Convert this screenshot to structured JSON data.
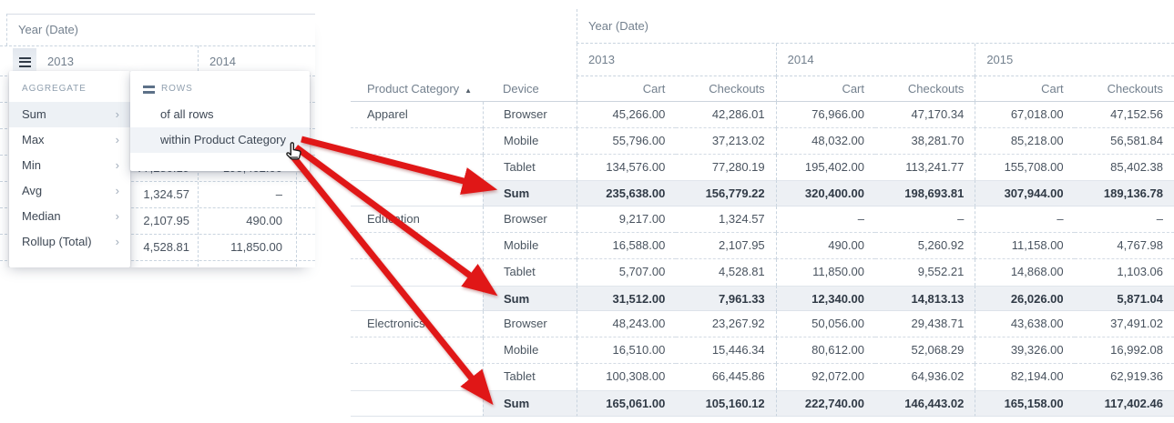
{
  "colors": {
    "accent_red": "#e01717",
    "sum_row_bg": "#edf0f4",
    "menu_highlight_bg": "#edf1f5",
    "header_text": "#73808e",
    "body_text": "#49535f",
    "dashed_border": "#c9d4df"
  },
  "left_panel": {
    "year_header": "Year (Date)",
    "years": [
      "2013",
      "2014"
    ],
    "aggregate_menu": {
      "title": "AGGREGATE",
      "items": [
        {
          "label": "Sum",
          "active": true
        },
        {
          "label": "Max",
          "active": false
        },
        {
          "label": "Min",
          "active": false
        },
        {
          "label": "Avg",
          "active": false
        },
        {
          "label": "Median",
          "active": false
        },
        {
          "label": "Rollup (Total)",
          "active": false
        }
      ]
    },
    "rows_submenu": {
      "title": "ROWS",
      "items": [
        {
          "label": "of all rows",
          "hovered": false
        },
        {
          "label": "within Product Category",
          "hovered": true
        }
      ]
    },
    "background_rows": [
      [
        "77,280.19",
        "195,402.00"
      ],
      [
        "1,324.57",
        "–"
      ],
      [
        "2,107.95",
        "490.00"
      ],
      [
        "4,528.81",
        "11,850.00"
      ]
    ]
  },
  "table": {
    "year_header": "Year (Date)",
    "years": [
      "2013",
      "2014",
      "2015"
    ],
    "category_header": "Product Category",
    "sort_indicator": "▲",
    "device_header": "Device",
    "metric_headers": [
      "Cart",
      "Checkouts"
    ],
    "sum_label": "Sum",
    "groups": [
      {
        "category": "Apparel",
        "rows": [
          {
            "device": "Browser",
            "values": [
              "45,266.00",
              "42,286.01",
              "76,966.00",
              "47,170.34",
              "67,018.00",
              "47,152.56"
            ]
          },
          {
            "device": "Mobile",
            "values": [
              "55,796.00",
              "37,213.02",
              "48,032.00",
              "38,281.70",
              "85,218.00",
              "56,581.84"
            ]
          },
          {
            "device": "Tablet",
            "values": [
              "134,576.00",
              "77,280.19",
              "195,402.00",
              "113,241.77",
              "155,708.00",
              "85,402.38"
            ]
          }
        ],
        "sum": [
          "235,638.00",
          "156,779.22",
          "320,400.00",
          "198,693.81",
          "307,944.00",
          "189,136.78"
        ]
      },
      {
        "category": "Education",
        "rows": [
          {
            "device": "Browser",
            "values": [
              "9,217.00",
              "1,324.57",
              "–",
              "–",
              "–",
              "–"
            ]
          },
          {
            "device": "Mobile",
            "values": [
              "16,588.00",
              "2,107.95",
              "490.00",
              "5,260.92",
              "11,158.00",
              "4,767.98"
            ]
          },
          {
            "device": "Tablet",
            "values": [
              "5,707.00",
              "4,528.81",
              "11,850.00",
              "9,552.21",
              "14,868.00",
              "1,103.06"
            ]
          }
        ],
        "sum": [
          "31,512.00",
          "7,961.33",
          "12,340.00",
          "14,813.13",
          "26,026.00",
          "5,871.04"
        ]
      },
      {
        "category": "Electronics",
        "rows": [
          {
            "device": "Browser",
            "values": [
              "48,243.00",
              "23,267.92",
              "50,056.00",
              "29,438.71",
              "43,638.00",
              "37,491.02"
            ]
          },
          {
            "device": "Mobile",
            "values": [
              "16,510.00",
              "15,446.34",
              "80,612.00",
              "52,068.29",
              "39,326.00",
              "16,992.08"
            ]
          },
          {
            "device": "Tablet",
            "values": [
              "100,308.00",
              "66,445.86",
              "92,072.00",
              "64,936.02",
              "82,194.00",
              "62,919.36"
            ]
          }
        ],
        "sum": [
          "165,061.00",
          "105,160.12",
          "222,740.00",
          "146,443.02",
          "165,158.00",
          "117,402.46"
        ]
      }
    ]
  }
}
